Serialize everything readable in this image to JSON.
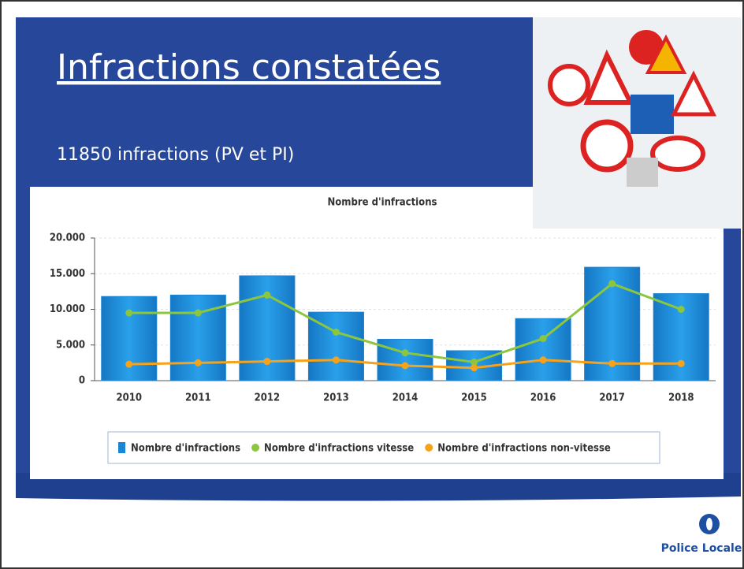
{
  "slide": {
    "title": "Infractions constatées",
    "subtitle": "11850 infractions (PV et PI)",
    "logo": "Police Locale"
  },
  "chart_data": {
    "type": "bar",
    "title": "Nombre d'infractions",
    "categories": [
      "2010",
      "2011",
      "2012",
      "2013",
      "2014",
      "2015",
      "2016",
      "2017",
      "2018"
    ],
    "series": [
      {
        "name": "Nombre d'infractions",
        "type": "bar",
        "color": "#1b86d4",
        "values": [
          11800,
          12000,
          14700,
          9600,
          5800,
          4200,
          8700,
          15900,
          12200
        ]
      },
      {
        "name": "Nombre d'infractions vitesse",
        "type": "line",
        "color": "#8cc63f",
        "values": [
          9500,
          9500,
          12000,
          6800,
          3900,
          2600,
          5900,
          13600,
          10000
        ]
      },
      {
        "name": "Nombre d'infractions non-vitesse",
        "type": "line",
        "color": "#f7a21b",
        "values": [
          2300,
          2500,
          2700,
          2900,
          2100,
          1800,
          2900,
          2400,
          2400
        ]
      }
    ],
    "ylim": [
      0,
      20000
    ],
    "yticks": [
      0,
      {
        "value": 5000,
        "label": "5.000"
      },
      {
        "value": 10000,
        "label": "10.000"
      },
      {
        "value": 15000,
        "label": "15.000"
      },
      {
        "value": 20000,
        "label": "20.000"
      }
    ],
    "grid": true,
    "legend": "bottom"
  }
}
